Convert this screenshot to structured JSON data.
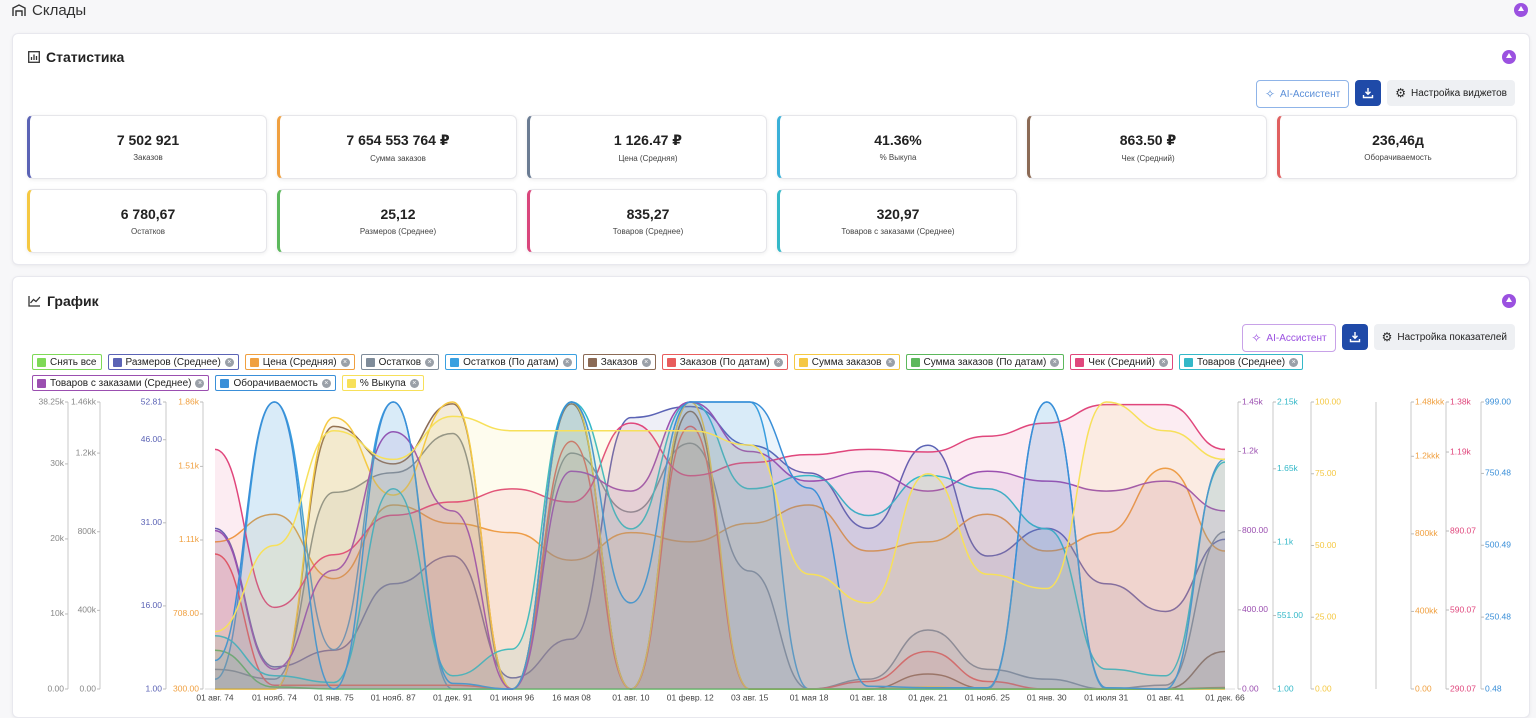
{
  "header": {
    "title": "Склады"
  },
  "stats": {
    "title": "Статистика",
    "buttons": [
      "AI-Ассистент",
      "Настройка виджетов"
    ],
    "tiles": [
      {
        "value": "7 502 921",
        "label": "Заказов",
        "color": "#5b63b5"
      },
      {
        "value": "7 654 553 764 ₽",
        "label": "Сумма заказов",
        "color": "#f0a040"
      },
      {
        "value": "1 126.47 ₽",
        "label": "Цена (Средняя)",
        "color": "#6b7c93"
      },
      {
        "value": "41.36%",
        "label": "% Выкупа",
        "color": "#3ab0d8"
      },
      {
        "value": "863.50 ₽",
        "label": "Чек (Средний)",
        "color": "#8b6a55"
      },
      {
        "value": "236,46д",
        "label": "Оборачиваемость",
        "color": "#e06060"
      },
      {
        "value": "6 780,67",
        "label": "Остатков",
        "color": "#f5c842"
      },
      {
        "value": "25,12",
        "label": "Размеров (Среднее)",
        "color": "#5cb85c"
      },
      {
        "value": "835,27",
        "label": "Товаров (Среднее)",
        "color": "#d9467c"
      },
      {
        "value": "320,97",
        "label": "Товаров с заказами (Среднее)",
        "color": "#34b8c8"
      }
    ]
  },
  "chart_section": {
    "title": "График",
    "buttons": [
      "AI-Ассистент",
      "Настройка показателей"
    ],
    "clear": "Снять все",
    "clear_color": "#7ed957"
  },
  "chart_data": {
    "type": "line",
    "categories": [
      "01 авг. 74",
      "01 нояб. 74",
      "01 янв. 75",
      "01 нояб. 87",
      "01 дек. 91",
      "01 июня 96",
      "16 мая 08",
      "01 авг. 10",
      "01 февр. 12",
      "03 авг. 15",
      "01 мая 18",
      "01 авг. 18",
      "01 дек. 21",
      "01 нояб. 25",
      "01 янв. 30",
      "01 июля 31",
      "01 авг. 41",
      "01 дек. 66"
    ],
    "axes": [
      {
        "side": "left",
        "color": "#888888",
        "lim": [
          0,
          38250
        ],
        "ticks": [
          {
            "value": 0,
            "label": "0.00"
          },
          {
            "value": 10000,
            "label": "10k"
          },
          {
            "value": 20000,
            "label": "20k"
          },
          {
            "value": 30000,
            "label": "30k"
          },
          {
            "value": 38250,
            "label": "38.25k"
          }
        ]
      },
      {
        "side": "left",
        "color": "#888888",
        "lim": [
          0,
          1460000
        ],
        "ticks": [
          {
            "value": 0,
            "label": "0.00"
          },
          {
            "value": 400000,
            "label": "400k"
          },
          {
            "value": 800000,
            "label": "800k"
          },
          {
            "value": 1200000,
            "label": "1.2kk"
          },
          {
            "value": 1460000,
            "label": "1.46kk"
          }
        ]
      },
      {
        "side": "left",
        "color": "#5b63b5",
        "lim": [
          1,
          52.81
        ],
        "ticks": [
          {
            "value": 1,
            "label": "1.00"
          },
          {
            "value": 16,
            "label": "16.00"
          },
          {
            "value": 31,
            "label": "31.00"
          },
          {
            "value": 46,
            "label": "46.00"
          },
          {
            "value": 52.81,
            "label": "52.81"
          }
        ]
      },
      {
        "side": "left",
        "color": "#f0a040",
        "lim": [
          300,
          1860
        ],
        "ticks": [
          {
            "value": 300,
            "label": "300.00"
          },
          {
            "value": 708,
            "label": "708.00"
          },
          {
            "value": 1110,
            "label": "1.11k"
          },
          {
            "value": 1510,
            "label": "1.51k"
          },
          {
            "value": 1860,
            "label": "1.86k"
          }
        ]
      },
      {
        "side": "right",
        "color": "#9b4fb0",
        "lim": [
          0,
          1450
        ],
        "ticks": [
          {
            "value": 0,
            "label": "0.00"
          },
          {
            "value": 400,
            "label": "400.00"
          },
          {
            "value": 800,
            "label": "800.00"
          },
          {
            "value": 1200,
            "label": "1.2k"
          },
          {
            "value": 1450,
            "label": "1.45k"
          }
        ]
      },
      {
        "side": "right",
        "color": "#34b8c8",
        "lim": [
          1,
          2150
        ],
        "ticks": [
          {
            "value": 1,
            "label": "1.00"
          },
          {
            "value": 551,
            "label": "551.00"
          },
          {
            "value": 1100,
            "label": "1.1k"
          },
          {
            "value": 1650,
            "label": "1.65k"
          },
          {
            "value": 2150,
            "label": "2.15k"
          }
        ]
      },
      {
        "side": "right",
        "color": "#f5c842",
        "lim": [
          0,
          100
        ],
        "ticks": [
          {
            "value": 0,
            "label": "0.00"
          },
          {
            "value": 25,
            "label": "25.00"
          },
          {
            "value": 50,
            "label": "50.00"
          },
          {
            "value": 75,
            "label": "75.00"
          },
          {
            "value": 100,
            "label": "100.00"
          }
        ]
      },
      {
        "side": "right",
        "color": "#f0a040",
        "lim": [
          0,
          1480000000
        ],
        "ticks": [
          {
            "value": 0,
            "label": "0.00"
          },
          {
            "value": 400000000,
            "label": "400kk"
          },
          {
            "value": 800000000,
            "label": "800kk"
          },
          {
            "value": 1200000000,
            "label": "1.2kkk"
          },
          {
            "value": 1480000000,
            "label": "1.48kkk"
          }
        ]
      },
      {
        "side": "right",
        "color": "#e0467c",
        "lim": [
          290.07,
          1380
        ],
        "ticks": [
          {
            "value": 290.07,
            "label": "290.07"
          },
          {
            "value": 590.07,
            "label": "590.07"
          },
          {
            "value": 890.07,
            "label": "890.07"
          },
          {
            "value": 1190,
            "label": "1.19k"
          },
          {
            "value": 1380,
            "label": "1.38k"
          }
        ]
      },
      {
        "side": "right",
        "color": "#3a8fd8",
        "lim": [
          0.48,
          999
        ],
        "ticks": [
          {
            "value": 0.48,
            "label": "0.48"
          },
          {
            "value": 250.48,
            "label": "250.48"
          },
          {
            "value": 500.49,
            "label": "500.49"
          },
          {
            "value": 750.48,
            "label": "750.48"
          },
          {
            "value": 999,
            "label": "999.00"
          }
        ]
      }
    ],
    "series": [
      {
        "name": "Размеров (Среднее)",
        "color": "#5b63b5",
        "axis": 2,
        "values": [
          30,
          5,
          8,
          20,
          25,
          3,
          10,
          50,
          52,
          45,
          40,
          30,
          45,
          25,
          30,
          20,
          15,
          28
        ]
      },
      {
        "name": "Цена (Средняя)",
        "color": "#f0a040",
        "axis": 3,
        "values": [
          1100,
          1250,
          900,
          1300,
          1200,
          1150,
          1000,
          1150,
          1100,
          1200,
          1300,
          1050,
          1100,
          1250,
          1050,
          1150,
          1500,
          1050
        ]
      },
      {
        "name": "Остатков",
        "color": "#7f8c9a",
        "axis": 1,
        "values": [
          100000,
          50000,
          1000000,
          1100000,
          1300000,
          0,
          1200000,
          900000,
          1250000,
          600000,
          0,
          50000,
          300000,
          100000,
          50000,
          0,
          20000,
          800000
        ]
      },
      {
        "name": "Остатков (По датам)",
        "color": "#3aa0e0",
        "axis": 1,
        "values": [
          50000,
          1460000,
          200000,
          1460000,
          0,
          0,
          1460000,
          0,
          1460000,
          1460000,
          0,
          0,
          0,
          0,
          1460000,
          0,
          0,
          0
        ]
      },
      {
        "name": "Заказов",
        "color": "#8b6a55",
        "axis": 0,
        "values": [
          0,
          0,
          35000,
          30000,
          38000,
          0,
          38000,
          0,
          37000,
          0,
          0,
          0,
          2000,
          0,
          0,
          0,
          0,
          5000
        ]
      },
      {
        "name": "Заказов (По датам)",
        "color": "#e85c5c",
        "axis": 0,
        "values": [
          18000,
          500,
          500,
          500,
          500,
          0,
          33000,
          0,
          35000,
          0,
          0,
          1000,
          5000,
          1000,
          0,
          0,
          0,
          200
        ]
      },
      {
        "name": "Сумма заказов",
        "color": "#f5c842",
        "axis": 7,
        "values": [
          0,
          0,
          1400000000,
          1000000000,
          1480000000,
          0,
          1480000000,
          0,
          1480000000,
          0,
          0,
          0,
          10000000,
          0,
          0,
          0,
          0,
          0
        ]
      },
      {
        "name": "Сумма заказов (По датам)",
        "color": "#5cb85c",
        "axis": 7,
        "values": [
          200000000,
          10000000,
          0,
          0,
          0,
          0,
          0,
          0,
          0,
          0,
          0,
          0,
          0,
          0,
          0,
          0,
          0,
          5000000
        ]
      },
      {
        "name": "Чек (Средний)",
        "color": "#e0467c",
        "axis": 8,
        "values": [
          1200,
          600,
          800,
          950,
          1000,
          1050,
          1000,
          1300,
          1100,
          1150,
          1180,
          1200,
          1190,
          1250,
          1300,
          1370,
          1370,
          1200
        ]
      },
      {
        "name": "Товаров (Среднее)",
        "color": "#34b8c8",
        "axis": 5,
        "values": [
          400,
          100,
          50,
          1500,
          100,
          300,
          2150,
          1200,
          2150,
          1500,
          1600,
          1300,
          1600,
          1500,
          1200,
          150,
          100,
          1700
        ]
      },
      {
        "name": "Товаров с заказами (Среднее)",
        "color": "#9b4fb0",
        "axis": 4,
        "values": [
          800,
          100,
          600,
          1300,
          900,
          0,
          1100,
          1000,
          1450,
          1200,
          1050,
          1100,
          1000,
          1100,
          1050,
          1000,
          1050,
          900
        ]
      },
      {
        "name": "Оборачиваемость",
        "color": "#3a8fd8",
        "axis": 9,
        "values": [
          100,
          999,
          0.48,
          999,
          20,
          0.48,
          999,
          300,
          999,
          999,
          700,
          10,
          5,
          5,
          999,
          5,
          0.48,
          800
        ]
      },
      {
        "name": "% Выкупа",
        "color": "#f7e05a",
        "axis": 6,
        "values": [
          20,
          50,
          90,
          80,
          95,
          90,
          90,
          90,
          90,
          85,
          40,
          30,
          75,
          40,
          35,
          100,
          90,
          80
        ]
      }
    ]
  }
}
